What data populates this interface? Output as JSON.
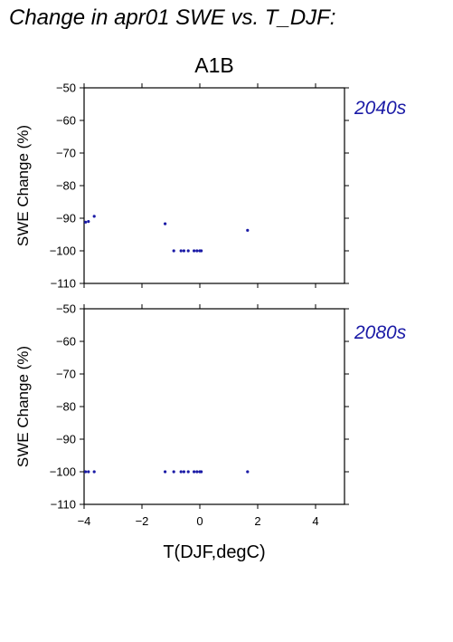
{
  "figure": {
    "heading": "Change in apr01 SWE vs. T_DJF:",
    "scenario": "A1B",
    "xlabel": "T(DJF,degC)",
    "point_color": "#1a1aa6",
    "label_color": "#1a1aa6"
  },
  "chart_data": [
    {
      "type": "scatter",
      "title": "A1B",
      "period_label": "2040s",
      "xlabel": "",
      "ylabel": "SWE Change (%)",
      "xlim": [
        -4,
        5
      ],
      "ylim": [
        -110,
        -50
      ],
      "xticks": [],
      "yticks": [
        -50,
        -60,
        -70,
        -80,
        -90,
        -100,
        -110
      ],
      "ytick_labels": [
        "−50",
        "−60",
        "−70",
        "−80",
        "−90",
        "−100",
        "−110"
      ],
      "grid": false,
      "x": [
        -3.95,
        -3.85,
        -3.65,
        -1.2,
        -0.9,
        -0.65,
        -0.55,
        -0.4,
        -0.2,
        -0.1,
        0.0,
        0.05,
        1.65
      ],
      "y": [
        -91.2,
        -91,
        -89.4,
        -91.7,
        -100,
        -100,
        -100,
        -100,
        -100,
        -100,
        -100,
        -100,
        -93.7
      ]
    },
    {
      "type": "scatter",
      "title": "",
      "period_label": "2080s",
      "xlabel": "T(DJF,degC)",
      "ylabel": "SWE Change (%)",
      "xlim": [
        -4,
        5
      ],
      "ylim": [
        -110,
        -50
      ],
      "xticks": [
        -4,
        -2,
        0,
        2,
        4
      ],
      "xtick_labels": [
        "−4",
        "−2",
        "0",
        "2",
        "4"
      ],
      "yticks": [
        -50,
        -60,
        -70,
        -80,
        -90,
        -100,
        -110
      ],
      "ytick_labels": [
        "−50",
        "−60",
        "−70",
        "−80",
        "−90",
        "−100",
        "−110"
      ],
      "grid": false,
      "x": [
        -3.95,
        -3.85,
        -3.65,
        -1.2,
        -0.9,
        -0.65,
        -0.55,
        -0.4,
        -0.2,
        -0.1,
        0.0,
        0.05,
        1.65
      ],
      "y": [
        -100,
        -100,
        -100,
        -100,
        -100,
        -100,
        -100,
        -100,
        -100,
        -100,
        -100,
        -100,
        -100
      ]
    }
  ]
}
